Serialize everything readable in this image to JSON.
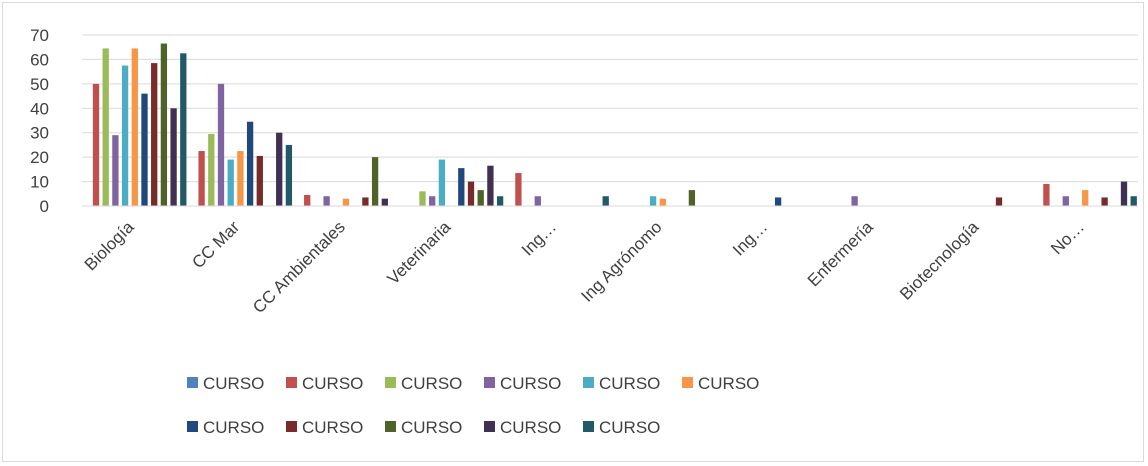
{
  "chart_data": {
    "type": "bar",
    "title": "",
    "xlabel": "",
    "ylabel": "",
    "ylim": [
      0,
      70
    ],
    "yticks": [
      0,
      10,
      20,
      30,
      40,
      50,
      60,
      70
    ],
    "grid": true,
    "legend_position": "bottom",
    "categories": [
      "Biología",
      "CC Mar",
      "CC Ambientales",
      "Veterinaria",
      "Ing…",
      "Ing Agrónomo",
      "Ing…",
      "Enfermería",
      "Biotecnología",
      "No…"
    ],
    "series": [
      {
        "name": "CURSO",
        "color": "#4f81bd",
        "values": [
          0,
          0,
          0,
          0,
          0,
          0,
          0,
          0,
          0,
          0
        ]
      },
      {
        "name": "CURSO",
        "color": "#c0504d",
        "values": [
          50,
          22.5,
          4.5,
          0,
          13.5,
          0,
          0,
          0,
          0,
          9
        ]
      },
      {
        "name": "CURSO",
        "color": "#9bbb59",
        "values": [
          64.5,
          29.5,
          0,
          6,
          0,
          0,
          0,
          0,
          0,
          0
        ]
      },
      {
        "name": "CURSO",
        "color": "#8064a2",
        "values": [
          29,
          50,
          4,
          4,
          4,
          0,
          0,
          4,
          0,
          4
        ]
      },
      {
        "name": "CURSO",
        "color": "#4bacc6",
        "values": [
          57.5,
          19,
          0,
          19,
          0,
          4,
          0,
          0,
          0,
          0
        ]
      },
      {
        "name": "CURSO",
        "color": "#f79646",
        "values": [
          64.5,
          22.5,
          3,
          0,
          0,
          3,
          0,
          0,
          0,
          6.5
        ]
      },
      {
        "name": "CURSO",
        "color": "#1f497d",
        "values": [
          46,
          34.5,
          0,
          15.5,
          0,
          0,
          3.5,
          0,
          0,
          0
        ]
      },
      {
        "name": "CURSO",
        "color": "#772c2a",
        "values": [
          58.5,
          20.5,
          3.5,
          10,
          0,
          0,
          0,
          0,
          3.5,
          3.5
        ]
      },
      {
        "name": "CURSO",
        "color": "#4f6228",
        "values": [
          66.5,
          0,
          20,
          6.5,
          0,
          6.5,
          0,
          0,
          0,
          0
        ]
      },
      {
        "name": "CURSO",
        "color": "#403152",
        "values": [
          40,
          30,
          3,
          16.5,
          0,
          0,
          0,
          0,
          0,
          10
        ]
      },
      {
        "name": "CURSO",
        "color": "#215968",
        "values": [
          62.5,
          25,
          0,
          4,
          4,
          0,
          0,
          0,
          0,
          4
        ]
      }
    ]
  }
}
